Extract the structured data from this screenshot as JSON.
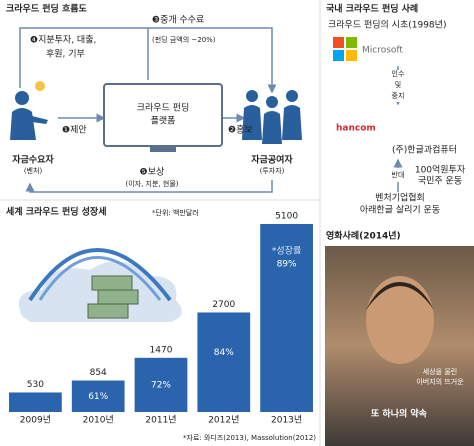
{
  "flow": {
    "title": "크라우드 펀딩 흐름도",
    "demander": {
      "label": "자금수요자",
      "sub": "(벤처)"
    },
    "platform": [
      "크라우드 펀딩",
      "플랫폼"
    ],
    "investor": {
      "label": "자금공여자",
      "sub": "(투자자)"
    },
    "step1": "❶제안",
    "step2": "❷홍보",
    "step3": [
      "❸중개 수수료",
      "(펀딩 금액의 ~20%)"
    ],
    "step4": [
      "❹지분투자, 대출,",
      "후원, 기부"
    ],
    "step5": [
      "❺보상",
      "(이자, 지분, 현물)"
    ]
  },
  "korea_case": {
    "title": "국내 크라우드 펀딩 사례",
    "subtitle": "크라우드 펀딩의 시초(1998년)",
    "company1": "Microsoft",
    "action": [
      "인수",
      "및",
      "중지"
    ],
    "company2": "hancom",
    "company2_name": "(주)한글과컴퓨터",
    "opposition": "반대",
    "movement1": [
      "100억원투자",
      "국민주 운동"
    ],
    "movement2": [
      "벤처기업협회",
      "아래한글 살리기 운동"
    ]
  },
  "chart_data": {
    "type": "bar",
    "title": "세계 크라우드 펀딩 성장세",
    "unit": "*단위: 백만달러",
    "categories": [
      "2009년",
      "2010년",
      "2011년",
      "2012년",
      "2013년"
    ],
    "values": [
      530,
      854,
      1470,
      2700,
      5100
    ],
    "color": "#2a64ad",
    "ylim": [
      0,
      5100
    ],
    "growth": {
      "label": "*성장률",
      "values": [
        null,
        61,
        72,
        84,
        89
      ],
      "value_labels": [
        null,
        "61%",
        "72%",
        "84%",
        "89%"
      ]
    },
    "source": "*자료: 와디즈(2013), Massolution(2012)"
  },
  "movie_case": {
    "title": "영화사례(2014년)",
    "tagline": [
      "세상을 울린",
      "아버지의 뜨거운"
    ],
    "movie_title": "또 하나의 약속"
  }
}
